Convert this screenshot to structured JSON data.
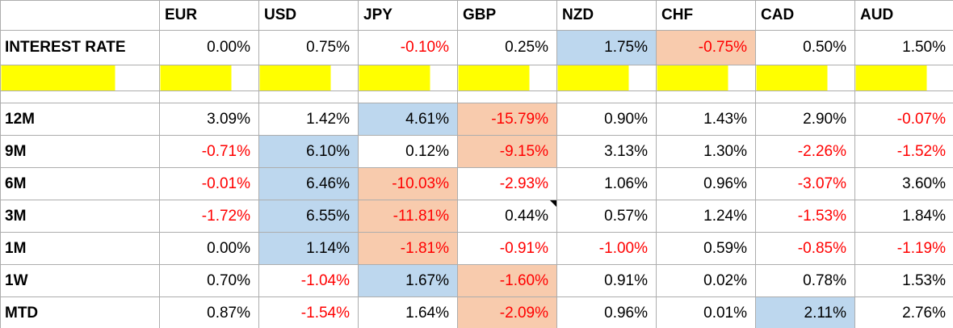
{
  "colors": {
    "negative_text": "#FF0000",
    "highlight_blue": "#BDD7EE",
    "highlight_orange": "#F8CBAD",
    "highlight_yellow": "#FFFF00",
    "grid_line": "#ADADAD",
    "text": "#000000"
  },
  "table": {
    "corner_label": "",
    "columns": [
      "EUR",
      "USD",
      "JPY",
      "GBP",
      "NZD",
      "CHF",
      "CAD",
      "AUD"
    ],
    "rows": [
      {
        "label": "INTEREST RATE",
        "type": "interest",
        "values": [
          "0.00%",
          "0.75%",
          "-0.10%",
          "0.25%",
          "1.75%",
          "-0.75%",
          "0.50%",
          "1.50%"
        ],
        "styles": [
          "",
          "",
          "neg",
          "",
          "blue",
          "neg orange",
          "",
          ""
        ]
      },
      {
        "label": "",
        "type": "yellow",
        "values": [
          "",
          "",
          "",
          "",
          "",
          "",
          "",
          ""
        ],
        "styles": [
          "",
          "",
          "",
          "",
          "",
          "",
          "",
          ""
        ]
      },
      {
        "label": "",
        "type": "gap",
        "values": [
          "",
          "",
          "",
          "",
          "",
          "",
          "",
          ""
        ],
        "styles": [
          "",
          "",
          "",
          "",
          "",
          "",
          "",
          ""
        ]
      },
      {
        "label": "12M",
        "type": "data",
        "values": [
          "3.09%",
          "1.42%",
          "4.61%",
          "-15.79%",
          "0.90%",
          "1.43%",
          "2.90%",
          "-0.07%"
        ],
        "styles": [
          "",
          "",
          "blue",
          "neg orange",
          "",
          "",
          "",
          "neg"
        ]
      },
      {
        "label": "9M",
        "type": "data",
        "values": [
          "-0.71%",
          "6.10%",
          "0.12%",
          "-9.15%",
          "3.13%",
          "1.30%",
          "-2.26%",
          "-1.52%"
        ],
        "styles": [
          "neg",
          "blue",
          "",
          "neg orange",
          "",
          "",
          "neg",
          "neg"
        ]
      },
      {
        "label": "6M",
        "type": "data",
        "values": [
          "-0.01%",
          "6.46%",
          "-10.03%",
          "-2.93%",
          "1.06%",
          "0.96%",
          "-3.07%",
          "3.60%"
        ],
        "styles": [
          "neg",
          "blue",
          "neg orange",
          "neg",
          "",
          "",
          "neg",
          ""
        ]
      },
      {
        "label": "3M",
        "type": "data",
        "values": [
          "-1.72%",
          "6.55%",
          "-11.81%",
          "0.44%",
          "0.57%",
          "1.24%",
          "-1.53%",
          "1.84%"
        ],
        "styles": [
          "neg",
          "blue",
          "neg orange",
          "marker",
          "",
          "",
          "neg",
          ""
        ]
      },
      {
        "label": "1M",
        "type": "data",
        "values": [
          "0.00%",
          "1.14%",
          "-1.81%",
          "-0.91%",
          "-1.00%",
          "0.59%",
          "-0.85%",
          "-1.19%"
        ],
        "styles": [
          "",
          "blue",
          "neg orange",
          "neg",
          "neg",
          "",
          "neg",
          "neg"
        ]
      },
      {
        "label": "1W",
        "type": "data",
        "values": [
          "0.70%",
          "-1.04%",
          "1.67%",
          "-1.60%",
          "0.91%",
          "0.02%",
          "0.78%",
          "1.53%"
        ],
        "styles": [
          "",
          "neg",
          "blue",
          "neg orange",
          "",
          "",
          "",
          ""
        ]
      },
      {
        "label": "MTD",
        "type": "data",
        "values": [
          "0.87%",
          "-1.54%",
          "1.64%",
          "-2.09%",
          "0.96%",
          "0.01%",
          "2.11%",
          "2.76%"
        ],
        "styles": [
          "",
          "neg",
          "",
          "neg orange",
          "",
          "",
          "blue",
          ""
        ]
      }
    ]
  }
}
